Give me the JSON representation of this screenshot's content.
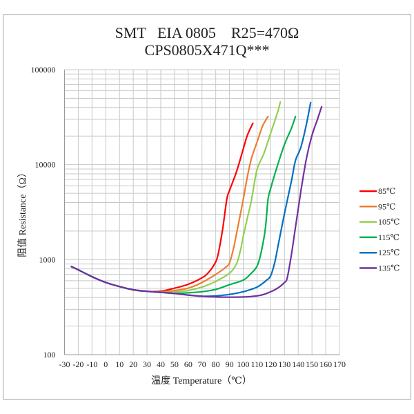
{
  "chart_data": {
    "type": "line",
    "title": "SMT   EIA 0805    R25=470Ω",
    "subtitle": "CPS0805X471Q***",
    "xlabel": "温度 Temperature（℃）",
    "ylabel": "阻值 Resistance（Ω）",
    "xlim": [
      -30,
      170
    ],
    "ylim": [
      100,
      100000
    ],
    "yscale": "log",
    "grid": true,
    "legend_position": "right",
    "x_ticks": [
      "-30",
      "-20",
      "-10",
      "0",
      "10",
      "20",
      "30",
      "40",
      "50",
      "60",
      "70",
      "80",
      "90",
      "100",
      "110",
      "120",
      "130",
      "140",
      "150",
      "160",
      "170"
    ],
    "y_ticks": [
      "100",
      "1000",
      "10000",
      "100000"
    ],
    "series": [
      {
        "name": "85℃",
        "color": "#ff0000",
        "x": [
          -25,
          -20,
          -10,
          0,
          10,
          20,
          30,
          40,
          50,
          60,
          70,
          75,
          80,
          82,
          85,
          88,
          90,
          95,
          100,
          103,
          107
        ],
        "y": [
          845,
          782,
          662,
          575,
          521,
          482,
          464,
          466,
          501,
          551,
          644,
          740,
          950,
          1190,
          2075,
          4280,
          5350,
          8350,
          14600,
          20400,
          27300
        ]
      },
      {
        "name": "95℃",
        "color": "#ed7d31",
        "x": [
          -25,
          -20,
          -10,
          0,
          10,
          20,
          30,
          40,
          50,
          60,
          70,
          80,
          87,
          90,
          93,
          96,
          100,
          103,
          106,
          110,
          114,
          118
        ],
        "y": [
          845,
          782,
          662,
          575,
          521,
          482,
          464,
          460,
          473,
          501,
          575,
          700,
          826,
          925,
          1330,
          2190,
          4280,
          7470,
          11700,
          17200,
          25400,
          32200
        ]
      },
      {
        "name": "105℃",
        "color": "#92d050",
        "x": [
          -25,
          -20,
          -10,
          0,
          10,
          20,
          30,
          40,
          50,
          60,
          70,
          80,
          90,
          95,
          98,
          100,
          103,
          106,
          110,
          115,
          120,
          125,
          127
        ],
        "y": [
          845,
          782,
          662,
          575,
          521,
          482,
          464,
          453,
          456,
          473,
          514,
          591,
          720,
          899,
          1256,
          1757,
          2745,
          4280,
          8840,
          13060,
          21600,
          35600,
          45800
        ]
      },
      {
        "name": "115℃",
        "color": "#00b050",
        "x": [
          -25,
          -20,
          -10,
          0,
          10,
          20,
          30,
          40,
          50,
          60,
          70,
          80,
          90,
          100,
          105,
          110,
          113,
          116,
          118,
          120,
          125,
          130,
          135,
          138
        ],
        "y": [
          845,
          782,
          662,
          575,
          521,
          482,
          464,
          453,
          441,
          448,
          460,
          487,
          545,
          609,
          700,
          851,
          1190,
          2075,
          4280,
          5660,
          9890,
          16330,
          24100,
          32100
        ]
      },
      {
        "name": "125℃",
        "color": "#0070c0",
        "x": [
          -25,
          -20,
          -10,
          0,
          10,
          20,
          30,
          40,
          50,
          60,
          70,
          80,
          90,
          100,
          110,
          117,
          120,
          123,
          126,
          130,
          135,
          138,
          142,
          146,
          149
        ],
        "y": [
          845,
          782,
          662,
          575,
          521,
          482,
          464,
          453,
          441,
          424,
          412,
          416,
          431,
          460,
          514,
          609,
          681,
          950,
          1570,
          3070,
          6680,
          11050,
          15400,
          26900,
          45100
        ]
      },
      {
        "name": "135℃",
        "color": "#7030a0",
        "x": [
          -25,
          -20,
          -10,
          0,
          10,
          20,
          30,
          40,
          50,
          60,
          70,
          80,
          90,
          100,
          110,
          115,
          120,
          125,
          130,
          132,
          135,
          138,
          142,
          146,
          150,
          154,
          157
        ],
        "y": [
          845,
          782,
          662,
          575,
          521,
          482,
          464,
          453,
          441,
          424,
          412,
          405,
          403,
          405,
          416,
          431,
          460,
          501,
          575,
          644,
          1124,
          2190,
          5350,
          11700,
          20400,
          30000,
          40700
        ]
      }
    ]
  }
}
